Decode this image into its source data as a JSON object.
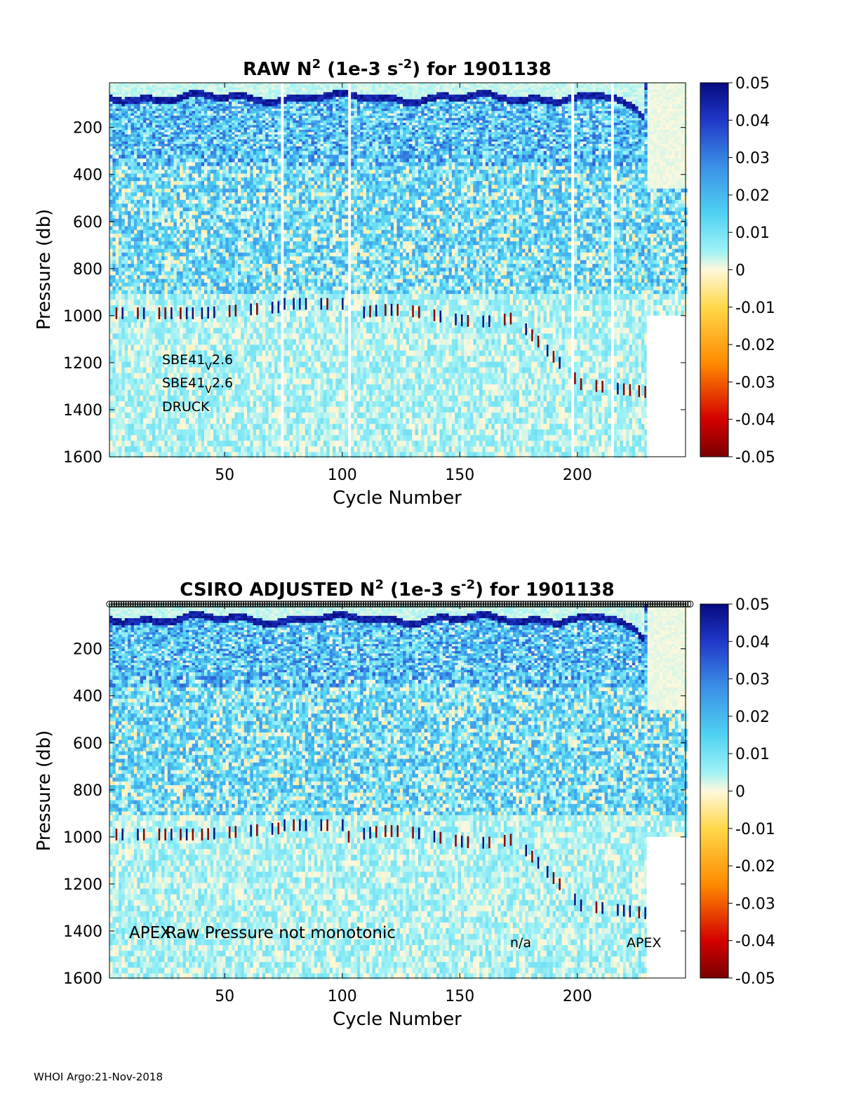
{
  "footer": "WHOI Argo:21-Nov-2018",
  "chart_data": [
    {
      "type": "heatmap",
      "title": {
        "pre": "RAW N",
        "sup1": "2",
        "mid": " (1e-3 s",
        "sup2": "-2",
        "post": ") for 1901138"
      },
      "xlabel": "Cycle Number",
      "ylabel": "Pressure (db)",
      "xlim": [
        1,
        246
      ],
      "ylim": [
        1600,
        10
      ],
      "y_reversed": true,
      "xticks": [
        50,
        100,
        150,
        200
      ],
      "yticks": [
        200,
        400,
        600,
        800,
        1000,
        1200,
        1400,
        1600
      ],
      "colorbar": {
        "min": -0.05,
        "max": 0.05,
        "ticks": [
          "0.05",
          "0.04",
          "0.03",
          "0.02",
          "0.01",
          "0",
          "-0.01",
          "-0.02",
          "-0.03",
          "-0.04",
          "-0.05"
        ]
      },
      "gap_cycles": [
        74,
        102,
        197,
        214
      ],
      "annotations": [
        {
          "text": "SBE41",
          "sub": "V",
          "rest": "2.6"
        },
        {
          "text": "SBE41",
          "sub": "V",
          "rest": "2.6"
        },
        {
          "text": "DRUCK",
          "sub": "",
          "rest": ""
        }
      ]
    },
    {
      "type": "heatmap",
      "title": {
        "pre": "CSIRO  ADJUSTED N",
        "sup1": "2",
        "mid": " (1e-3 s",
        "sup2": "-2",
        "post": ") for 1901138"
      },
      "xlabel": "Cycle Number",
      "ylabel": "Pressure (db)",
      "xlim": [
        1,
        246
      ],
      "ylim": [
        1600,
        10
      ],
      "y_reversed": true,
      "xticks": [
        50,
        100,
        150,
        200
      ],
      "yticks": [
        200,
        400,
        600,
        800,
        1000,
        1200,
        1400,
        1600
      ],
      "colorbar": {
        "min": -0.05,
        "max": 0.05,
        "ticks": [
          "0.05",
          "0.04",
          "0.03",
          "0.02",
          "0.01",
          "0",
          "-0.01",
          "-0.02",
          "-0.03",
          "-0.04",
          "-0.05"
        ]
      },
      "annotations": [
        {
          "text": "APEX"
        },
        {
          "text": "Raw Pressure not monotonic"
        },
        {
          "text": "n/a"
        },
        {
          "text": "APEX"
        }
      ]
    }
  ]
}
